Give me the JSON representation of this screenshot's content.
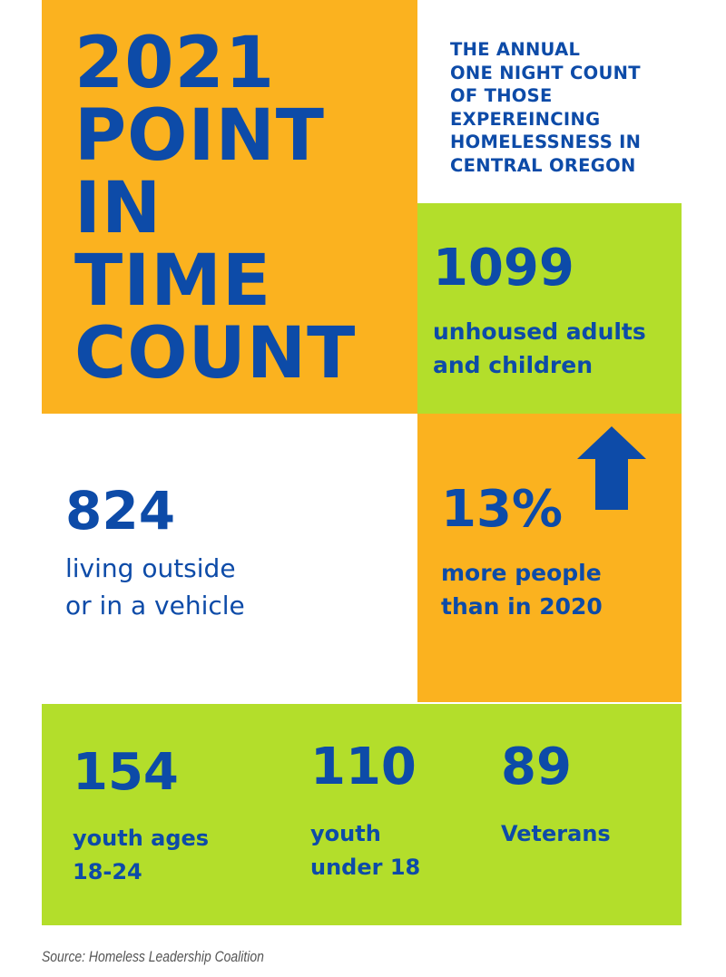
{
  "title": "2021\nPOINT\nIN\nTIME\nCOUNT",
  "subtitle": "THE ANNUAL\nONE NIGHT COUNT\nOF THOSE\nEXPEREINCING\nHOMELESSNESS IN\nCENTRAL OREGON",
  "stats": {
    "unhoused": {
      "value": "1099",
      "label": "unhoused adults\nand children"
    },
    "outside": {
      "value": "824",
      "label": "living outside\nor in a vehicle"
    },
    "increase": {
      "value": "13%",
      "label": "more people\nthan in 2020",
      "icon": "arrow-up-icon"
    },
    "youth_18_24": {
      "value": "154",
      "label": "youth ages\n18-24"
    },
    "youth_under_18": {
      "value": "110",
      "label": "youth\nunder 18"
    },
    "veterans": {
      "value": "89",
      "label": "Veterans"
    }
  },
  "source": "Source: Homeless Leadership Coalition",
  "colors": {
    "orange": "#FBB21F",
    "green": "#B3DE2B",
    "blue": "#0D4BA8",
    "background": "#FFFFFF"
  }
}
